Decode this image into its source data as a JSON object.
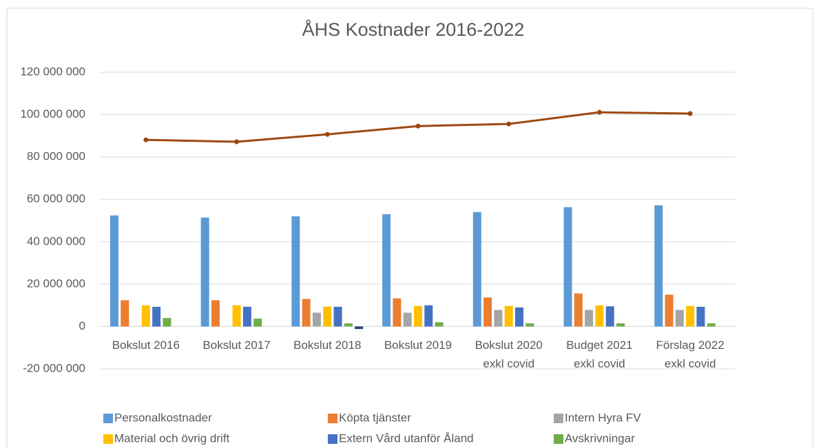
{
  "chart_data": {
    "type": "bar",
    "title": "ÅHS Kostnader 2016-2022",
    "categories": [
      "Bokslut 2016",
      "Bokslut 2017",
      "Bokslut 2018",
      "Bokslut 2019",
      "Bokslut 2020\nexkl covid",
      "Budget 2021\nexkl covid",
      "Förslag 2022\nexkl covid"
    ],
    "series": [
      {
        "name": "Personalkostnader",
        "color": "#5b9bd5",
        "values": [
          52400000,
          51400000,
          52000000,
          53000000,
          54000000,
          56300000,
          57200000
        ]
      },
      {
        "name": "Köpta tjänster",
        "color": "#ed7d31",
        "values": [
          12400000,
          12400000,
          13000000,
          13300000,
          13700000,
          15600000,
          15000000
        ]
      },
      {
        "name": "Intern Hyra FV",
        "color": "#a5a5a5",
        "values": [
          0,
          0,
          6500000,
          6500000,
          7800000,
          7800000,
          7800000
        ]
      },
      {
        "name": "Material och övrig drift",
        "color": "#ffc000",
        "values": [
          10000000,
          10000000,
          9400000,
          9700000,
          9700000,
          10000000,
          9700000
        ]
      },
      {
        "name": "Extern Vård utanför Åland",
        "color": "#4472c4",
        "values": [
          9300000,
          9300000,
          9300000,
          10000000,
          9000000,
          9500000,
          9300000
        ]
      },
      {
        "name": "Avskrivningar",
        "color": "#70ad47",
        "values": [
          4000000,
          3700000,
          1500000,
          2000000,
          1500000,
          1500000,
          1500000
        ]
      },
      {
        "color": "#264478",
        "values": [
          0,
          0,
          -1200000,
          0,
          0,
          0,
          0
        ]
      },
      {
        "type": "line",
        "color": "#9e480e",
        "values": [
          88100000,
          87200000,
          90700000,
          94600000,
          95600000,
          101100000,
          100500000
        ]
      }
    ],
    "ylim": [
      -20000000,
      120000000
    ],
    "yticks": [
      {
        "value": -20000000,
        "label": "-20 000 000"
      },
      0,
      {
        "value": 20000000,
        "label": "20 000 000"
      },
      {
        "value": 40000000,
        "label": "40 000 000"
      },
      {
        "value": 60000000,
        "label": "60 000 000"
      },
      {
        "value": 80000000,
        "label": "80 000 000"
      },
      {
        "value": 100000000,
        "label": "100 000 000"
      },
      {
        "value": 120000000,
        "label": "120 000 000"
      }
    ],
    "grid": true,
    "legend": "bottom"
  }
}
